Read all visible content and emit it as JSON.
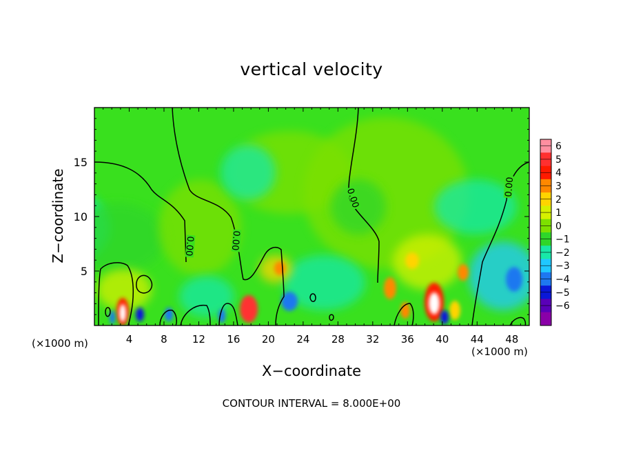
{
  "chart_data": {
    "type": "heatmap",
    "title": "vertical velocity",
    "xlabel": "X−coordinate",
    "ylabel": "Z−coordinate",
    "x_unit_label": "(×1000 m)",
    "x_ticks": [
      "4",
      "8",
      "12",
      "16",
      "20",
      "24",
      "28",
      "32",
      "36",
      "40",
      "44",
      "48"
    ],
    "y_ticks": [
      "5",
      "10",
      "15"
    ],
    "xlim": [
      0,
      50
    ],
    "ylim": [
      0,
      20
    ],
    "colorbar": {
      "labels": [
        "6",
        "5",
        "4",
        "3",
        "2",
        "1",
        "0",
        "−1",
        "−2",
        "−3",
        "−4",
        "−5",
        "−6"
      ],
      "colors": [
        "#ff8fa0",
        "#ff3030",
        "#ff1a00",
        "#ff8800",
        "#ffd400",
        "#d6f000",
        "#7de000",
        "#2fd62a",
        "#18e8a8",
        "#20c8ff",
        "#1e78f0",
        "#0a18d8",
        "#5a00b8",
        "#8a00a8"
      ]
    },
    "contour_labels": [
      "0.00",
      "0.00",
      "0.00",
      "0.00"
    ],
    "annotation": "CONTOUR INTERVAL = 8.000E+00"
  },
  "colors": {
    "background_field": "#39e01e",
    "frame": "#000000"
  }
}
